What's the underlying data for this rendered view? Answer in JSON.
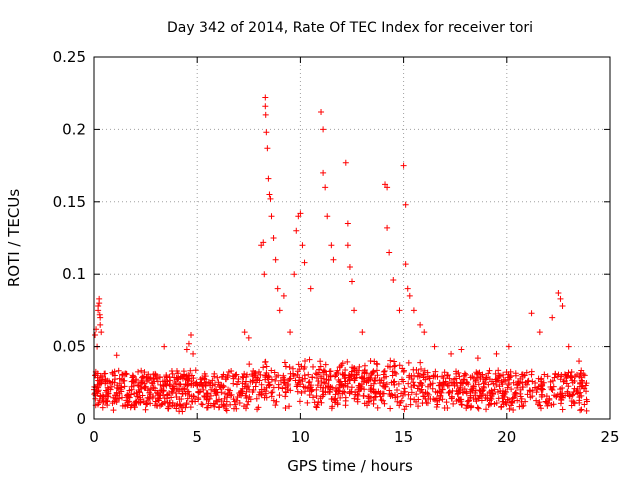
{
  "chart_data": {
    "type": "scatter",
    "title": "Day 342 of 2014, Rate Of TEC Index for receiver tori",
    "xlabel": "GPS time / hours",
    "ylabel": "ROTI / TECUs",
    "xlim": [
      0,
      25
    ],
    "ylim": [
      0,
      0.25
    ],
    "xticks": [
      0,
      5,
      10,
      15,
      20,
      25
    ],
    "xtick_labels": [
      "0",
      "5",
      "10",
      "15",
      "20",
      "25"
    ],
    "yticks": [
      0,
      0.05,
      0.1,
      0.15,
      0.2,
      0.25
    ],
    "ytick_labels": [
      "0",
      "0.05",
      "0.1",
      "0.15",
      "0.2",
      "0.25"
    ],
    "grid": true,
    "marker": "+",
    "color": "#ff0000",
    "series": [
      {
        "name": "ROTI",
        "x": [
          0.05,
          0.1,
          0.15,
          0.2,
          0.25,
          0.3,
          0.35,
          0.2,
          0.25,
          0.3,
          0.28,
          1.1,
          3.4,
          4.5,
          4.6,
          4.7,
          4.8,
          7.3,
          7.5,
          8.1,
          8.2,
          8.25,
          8.3,
          8.3,
          8.32,
          8.35,
          8.4,
          8.45,
          8.5,
          8.55,
          8.6,
          8.7,
          8.8,
          8.9,
          9.0,
          9.2,
          9.5,
          9.7,
          9.8,
          9.9,
          10.0,
          10.1,
          10.2,
          10.5,
          11.0,
          11.1,
          11.1,
          11.2,
          11.3,
          11.5,
          11.6,
          12.2,
          12.3,
          12.3,
          12.4,
          12.5,
          12.6,
          13.0,
          14.1,
          14.2,
          14.2,
          14.3,
          14.5,
          14.8,
          15.0,
          15.1,
          15.1,
          15.2,
          15.3,
          15.5,
          15.8,
          16.0,
          16.5,
          17.3,
          17.8,
          18.6,
          19.5,
          20.1,
          21.2,
          21.6,
          22.2,
          22.5,
          22.6,
          22.7,
          23.0,
          23.5
        ],
        "y": [
          0.058,
          0.062,
          0.05,
          0.078,
          0.083,
          0.07,
          0.06,
          0.075,
          0.08,
          0.065,
          0.072,
          0.044,
          0.05,
          0.048,
          0.052,
          0.058,
          0.045,
          0.06,
          0.056,
          0.12,
          0.122,
          0.1,
          0.222,
          0.216,
          0.21,
          0.198,
          0.187,
          0.166,
          0.155,
          0.152,
          0.14,
          0.125,
          0.11,
          0.09,
          0.075,
          0.085,
          0.06,
          0.1,
          0.13,
          0.14,
          0.142,
          0.12,
          0.108,
          0.09,
          0.212,
          0.2,
          0.17,
          0.16,
          0.14,
          0.12,
          0.11,
          0.177,
          0.135,
          0.12,
          0.105,
          0.095,
          0.075,
          0.06,
          0.162,
          0.16,
          0.132,
          0.115,
          0.096,
          0.075,
          0.175,
          0.148,
          0.107,
          0.09,
          0.085,
          0.075,
          0.065,
          0.06,
          0.05,
          0.045,
          0.048,
          0.042,
          0.045,
          0.05,
          0.073,
          0.06,
          0.07,
          0.087,
          0.083,
          0.078,
          0.05,
          0.04
        ]
      }
    ],
    "background_band": {
      "description": "dense band of ROTI values across all hours",
      "x_start": 0,
      "x_end": 23.9,
      "y_low": 0.005,
      "y_high": 0.03
    }
  }
}
